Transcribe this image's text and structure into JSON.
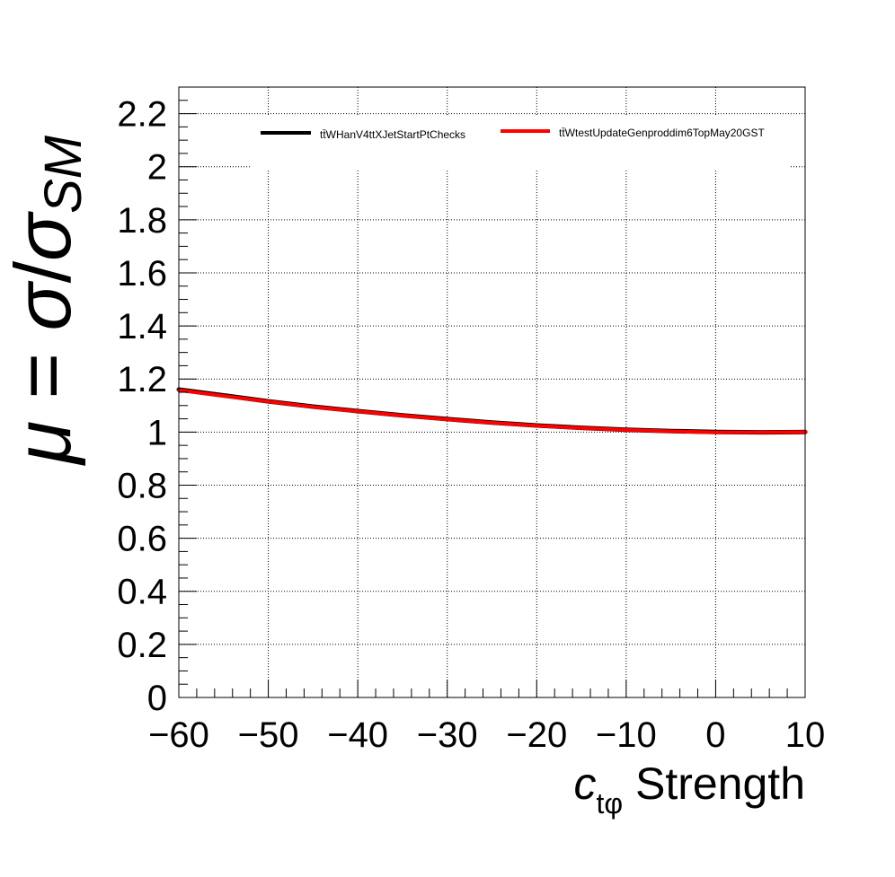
{
  "chart_data": {
    "type": "line",
    "xlabel": {
      "symbol": "c",
      "subscript": "tφ",
      "suffix": " Strength"
    },
    "ylabel": {
      "mu": "μ",
      "equals": " = ",
      "sigma": "σ",
      "slash": "/",
      "sigma_sm": "σ",
      "subscript": "SM"
    },
    "xlim": [
      -60,
      10
    ],
    "ylim": [
      0,
      2.3
    ],
    "xticks": [
      -60,
      -50,
      -40,
      -30,
      -20,
      -10,
      0,
      10
    ],
    "xtick_labels": [
      "−60",
      "−50",
      "−40",
      "−30",
      "−20",
      "−10",
      "0",
      "10"
    ],
    "yticks": [
      0,
      0.2,
      0.4,
      0.6,
      0.8,
      1,
      1.2,
      1.4,
      1.6,
      1.8,
      2,
      2.2
    ],
    "ytick_labels": [
      "0",
      "0.2",
      "0.4",
      "0.6",
      "0.8",
      "1",
      "1.2",
      "1.4",
      "1.6",
      "1.8",
      "2",
      "2.2"
    ],
    "grid": true,
    "legend_position": "top-right",
    "series": [
      {
        "name": "tt̄WHanV4ttXJetStartPtChecks",
        "color": "#000000",
        "x": [
          -60,
          -55,
          -50,
          -45,
          -40,
          -35,
          -30,
          -25,
          -20,
          -15,
          -10,
          -5,
          0,
          5,
          10
        ],
        "y": [
          1.16,
          1.138,
          1.116,
          1.096,
          1.079,
          1.063,
          1.049,
          1.036,
          1.025,
          1.016,
          1.009,
          1.004,
          1.0,
          0.999,
          1.0
        ]
      },
      {
        "name": "tt̄WtestUpdateGenproddim6TopMay20GST",
        "color": "#ff0000",
        "x": [
          -60,
          -55,
          -50,
          -45,
          -40,
          -35,
          -30,
          -25,
          -20,
          -15,
          -10,
          -5,
          0,
          5,
          10
        ],
        "y": [
          1.158,
          1.136,
          1.115,
          1.095,
          1.078,
          1.062,
          1.048,
          1.035,
          1.024,
          1.015,
          1.008,
          1.003,
          0.999,
          0.999,
          1.0
        ]
      }
    ]
  }
}
